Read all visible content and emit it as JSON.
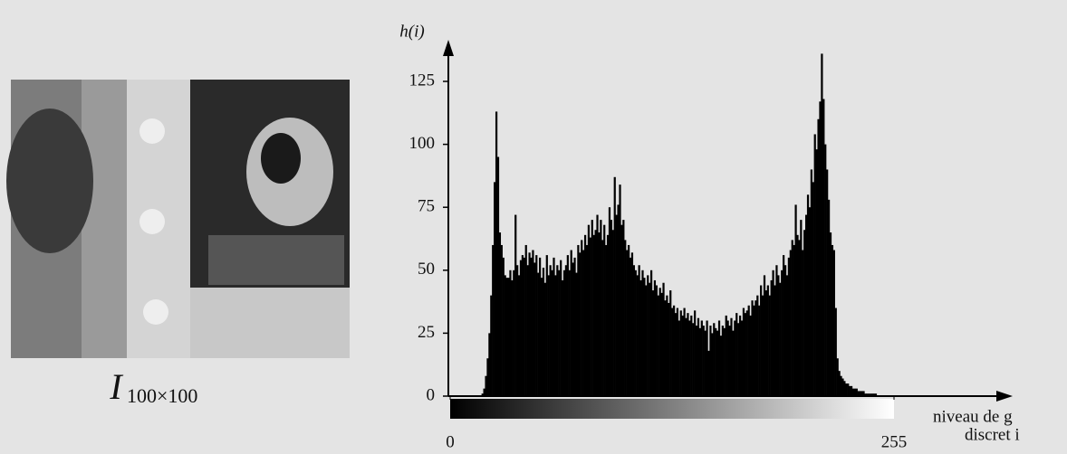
{
  "chart_data": {
    "type": "histogram",
    "image_caption": "I",
    "image_caption_subscript": "100×100",
    "y_label": "h(i)",
    "x_label": [
      "niveau de g",
      "discret i"
    ],
    "color": "#000000",
    "xlim": [
      0,
      255
    ],
    "xticks": [
      0,
      255
    ],
    "ylim": [
      0,
      140
    ],
    "yticks": [
      0,
      25,
      50,
      75,
      100,
      125
    ],
    "bins": [
      0,
      1,
      2,
      3,
      4,
      5,
      6,
      7,
      8,
      9,
      10,
      11,
      12,
      13,
      14,
      15,
      16,
      17,
      18,
      19,
      20,
      21,
      22,
      23,
      24,
      25,
      26,
      27,
      28,
      29,
      30,
      31,
      32,
      33,
      34,
      35,
      36,
      37,
      38,
      39,
      40,
      41,
      42,
      43,
      44,
      45,
      46,
      47,
      48,
      49,
      50,
      51,
      52,
      53,
      54,
      55,
      56,
      57,
      58,
      59,
      60,
      61,
      62,
      63,
      64,
      65,
      66,
      67,
      68,
      69,
      70,
      71,
      72,
      73,
      74,
      75,
      76,
      77,
      78,
      79,
      80,
      81,
      82,
      83,
      84,
      85,
      86,
      87,
      88,
      89,
      90,
      91,
      92,
      93,
      94,
      95,
      96,
      97,
      98,
      99,
      100,
      101,
      102,
      103,
      104,
      105,
      106,
      107,
      108,
      109,
      110,
      111,
      112,
      113,
      114,
      115,
      116,
      117,
      118,
      119,
      120,
      121,
      122,
      123,
      124,
      125,
      126,
      127,
      128,
      129,
      130,
      131,
      132,
      133,
      134,
      135,
      136,
      137,
      138,
      139,
      140,
      141,
      142,
      143,
      144,
      145,
      146,
      147,
      148,
      149,
      150,
      151,
      152,
      153,
      154,
      155,
      156,
      157,
      158,
      159,
      160,
      161,
      162,
      163,
      164,
      165,
      166,
      167,
      168,
      169,
      170,
      171,
      172,
      173,
      174,
      175,
      176,
      177,
      178,
      179,
      180,
      181,
      182,
      183,
      184,
      185,
      186,
      187,
      188,
      189,
      190,
      191,
      192,
      193,
      194,
      195,
      196,
      197,
      198,
      199,
      200,
      201,
      202,
      203,
      204,
      205,
      206,
      207,
      208,
      209,
      210,
      211,
      212,
      213,
      214,
      215,
      216,
      217,
      218,
      219,
      220,
      221,
      222,
      223,
      224,
      225,
      226,
      227,
      228,
      229,
      230,
      231,
      232,
      233,
      234,
      235,
      236,
      237,
      238,
      239,
      240,
      241,
      242,
      243,
      244,
      245,
      246,
      247,
      248,
      249,
      250,
      251,
      252,
      253,
      254,
      255,
      256
    ],
    "values": [
      0,
      0,
      0,
      0,
      0,
      0,
      0,
      0,
      0,
      0,
      0,
      0,
      0,
      0,
      0,
      0,
      0,
      0,
      1,
      3,
      8,
      15,
      25,
      40,
      60,
      85,
      113,
      95,
      65,
      60,
      55,
      48,
      47,
      47,
      50,
      46,
      50,
      72,
      52,
      48,
      54,
      56,
      55,
      60,
      52,
      57,
      55,
      58,
      53,
      56,
      49,
      55,
      47,
      51,
      45,
      56,
      48,
      52,
      50,
      55,
      48,
      52,
      50,
      54,
      46,
      50,
      52,
      56,
      50,
      58,
      53,
      55,
      49,
      60,
      57,
      62,
      58,
      64,
      60,
      68,
      63,
      70,
      64,
      66,
      72,
      65,
      70,
      62,
      68,
      60,
      64,
      75,
      70,
      66,
      87,
      72,
      76,
      84,
      68,
      70,
      62,
      58,
      60,
      55,
      57,
      52,
      50,
      48,
      52,
      46,
      50,
      47,
      44,
      48,
      45,
      50,
      42,
      46,
      44,
      40,
      43,
      41,
      45,
      38,
      40,
      37,
      42,
      35,
      36,
      33,
      35,
      30,
      34,
      32,
      35,
      31,
      33,
      30,
      32,
      29,
      34,
      28,
      31,
      27,
      30,
      28,
      26,
      30,
      18,
      28,
      25,
      29,
      27,
      26,
      30,
      24,
      28,
      27,
      32,
      30,
      28,
      31,
      26,
      30,
      33,
      29,
      32,
      30,
      35,
      33,
      34,
      36,
      32,
      38,
      36,
      38,
      40,
      36,
      44,
      40,
      48,
      42,
      44,
      40,
      46,
      50,
      44,
      52,
      48,
      45,
      50,
      56,
      52,
      48,
      55,
      58,
      62,
      60,
      76,
      64,
      62,
      70,
      58,
      66,
      72,
      80,
      75,
      90,
      85,
      104,
      98,
      110,
      117,
      136,
      118,
      100,
      90,
      78,
      65,
      60,
      58,
      35,
      15,
      10,
      8,
      7,
      6,
      5,
      5,
      4,
      4,
      3,
      3,
      3,
      2,
      2,
      2,
      2,
      1,
      1,
      1,
      1,
      1,
      1,
      1,
      0,
      0,
      0,
      0,
      0,
      0,
      0,
      0,
      0,
      0,
      0
    ]
  }
}
